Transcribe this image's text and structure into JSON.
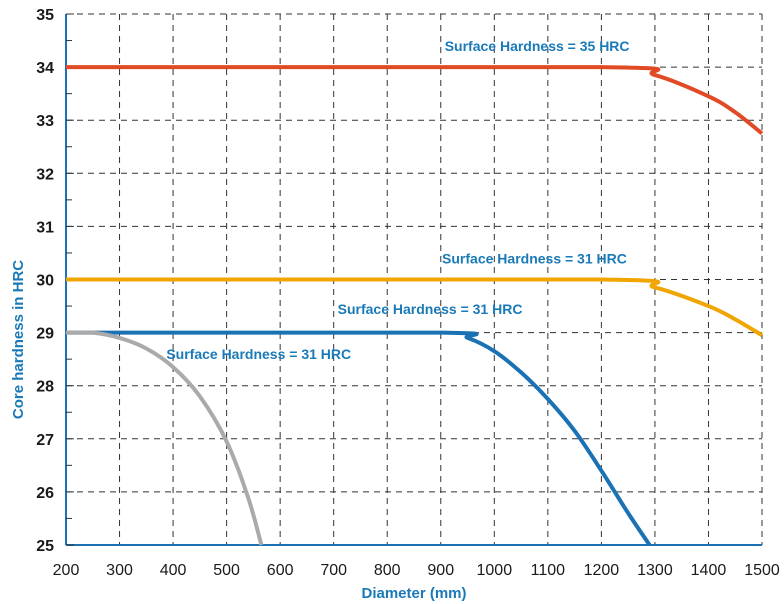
{
  "chart_data": {
    "type": "line",
    "title": "",
    "xlabel": "Diameter (mm)",
    "ylabel": "Core hardness in HRC",
    "xlim": [
      200,
      1500
    ],
    "ylim": [
      25,
      35
    ],
    "x_ticks": [
      200,
      300,
      400,
      500,
      600,
      700,
      800,
      900,
      1000,
      1100,
      1200,
      1300,
      1400,
      1500
    ],
    "x_tick_labels": [
      "200",
      "300",
      "400",
      "500",
      "600",
      "700",
      "800",
      "900",
      "1000",
      "1100",
      "1200",
      "1300",
      "1400",
      "1500"
    ],
    "y_ticks": [
      25,
      26,
      27,
      28,
      29,
      30,
      31,
      32,
      33,
      34,
      35
    ],
    "y_tick_labels": [
      "25",
      "26",
      "27",
      "28",
      "29",
      "30",
      "31",
      "32",
      "33",
      "34",
      "35"
    ],
    "grid": true,
    "grid_style": "dashed",
    "series": [
      {
        "color": "#e04a25",
        "x": [
          200,
          1200,
          1300,
          1400,
          1450,
          1500
        ],
        "y": [
          34,
          34,
          33.85,
          33.45,
          33.15,
          32.75
        ]
      },
      {
        "color": "#f0a500",
        "x": [
          200,
          1200,
          1300,
          1400,
          1450,
          1500
        ],
        "y": [
          30,
          30,
          29.85,
          29.5,
          29.25,
          28.95
        ]
      },
      {
        "color": "#1a72b5",
        "x": [
          200,
          900,
          950,
          1000,
          1050,
          1100,
          1150,
          1200,
          1250,
          1290
        ],
        "y": [
          29,
          29,
          28.9,
          28.65,
          28.25,
          27.75,
          27.15,
          26.4,
          25.6,
          25
        ]
      },
      {
        "color": "#aaaaaa",
        "x": [
          200,
          250,
          300,
          350,
          400,
          450,
          500,
          540,
          565
        ],
        "y": [
          29,
          29,
          28.9,
          28.7,
          28.35,
          27.8,
          26.95,
          25.9,
          25
        ]
      }
    ],
    "annotations": [
      {
        "text": "Surface Hardness = 35 HRC",
        "x": 1080,
        "y": 34.3
      },
      {
        "text": "Surface Hardness = 31 HRC",
        "x": 1075,
        "y": 30.3
      },
      {
        "text": "Surface Hardness = 31 HRC",
        "x": 880,
        "y": 29.35
      },
      {
        "text": "Surface Hardness = 31 HRC",
        "x": 560,
        "y": 28.5
      }
    ]
  }
}
